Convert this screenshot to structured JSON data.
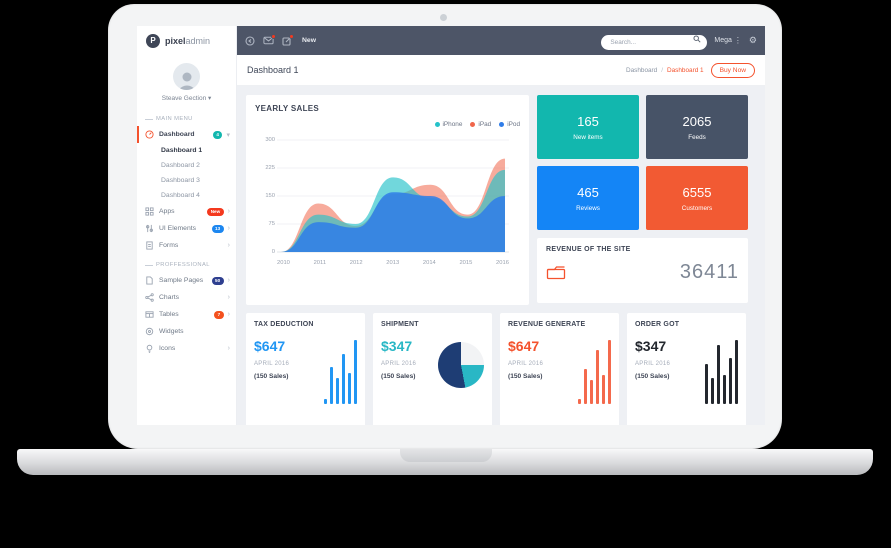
{
  "colors": {
    "accent": "#f4522d",
    "navbar": "#4d5567",
    "teal": "#12b7ae",
    "navy": "#475367",
    "blue": "#1485f6",
    "orange": "#f25a33"
  },
  "icons": {
    "gear": "⚙",
    "menu_dots": "⋮",
    "caret_down": "▾",
    "chevron_right": "›"
  },
  "brand": {
    "initial": "P",
    "name_bold": "pixel",
    "name_light": "admin"
  },
  "topbar": {
    "new_label": "New",
    "search_placeholder": "Search...",
    "mega_label": "Mega"
  },
  "user": {
    "name": "Steave Gection"
  },
  "sidebar": {
    "main_menu_title": "MAIN MENU",
    "professional_title": "PROFFESSIONAL",
    "dashboard": {
      "label": "Dashboard",
      "badge": "4"
    },
    "dashboard_children": [
      {
        "label": "Dashboard 1"
      },
      {
        "label": "Dashboard 2"
      },
      {
        "label": "Dashboard 3"
      },
      {
        "label": "Dashboard 4"
      }
    ],
    "menu_items": [
      {
        "label": "Apps",
        "badge": "New"
      },
      {
        "label": "UI Elements",
        "badge": "13"
      },
      {
        "label": "Forms",
        "badge": ""
      }
    ],
    "pro_items": [
      {
        "label": "Sample Pages",
        "badge": "50"
      },
      {
        "label": "Charts",
        "badge": ""
      },
      {
        "label": "Tables",
        "badge": "7"
      },
      {
        "label": "Widgets",
        "badge": ""
      },
      {
        "label": "Icons",
        "badge": ""
      }
    ]
  },
  "page": {
    "title": "Dashboard 1",
    "breadcrumb_root": "Dashboard",
    "breadcrumb_sep": "/",
    "breadcrumb_current": "Dashboard 1",
    "buy_now": "Buy Now"
  },
  "stats": [
    {
      "value": "165",
      "label": "New items",
      "color": "#12b7ae"
    },
    {
      "value": "2065",
      "label": "Feeds",
      "color": "#475367"
    },
    {
      "value": "465",
      "label": "Reviews",
      "color": "#1485f6"
    },
    {
      "value": "6555",
      "label": "Customers",
      "color": "#f25a33"
    }
  ],
  "revenue": {
    "title": "REVENUE OF THE SITE",
    "value": "36411"
  },
  "bottom_cards": [
    {
      "title": "TAX DEDUCTION",
      "amount": "$647",
      "period": "APRIL 2016",
      "sales": "(150 Sales)",
      "color": "#2196f3"
    },
    {
      "title": "SHIPMENT",
      "amount": "$347",
      "period": "APRIL 2016",
      "sales": "(150 Sales)",
      "color": "#29b7c5"
    },
    {
      "title": "REVENUE GENERATE",
      "amount": "$647",
      "period": "APRIL 2016",
      "sales": "(150 Sales)",
      "color": "#f4522d"
    },
    {
      "title": "ORDER GOT",
      "amount": "$347",
      "period": "APRIL 2016",
      "sales": "(150 Sales)",
      "color": "#23272e"
    }
  ],
  "chart_data": [
    {
      "type": "area",
      "title": "YEARLY SALES",
      "x": [
        2010,
        2011,
        2012,
        2013,
        2014,
        2015,
        2016
      ],
      "yticks": [
        300,
        225,
        150,
        75,
        0
      ],
      "ylim": [
        0,
        300
      ],
      "grid": true,
      "legend_position": "top-right",
      "series": [
        {
          "name": "iPhone",
          "color": "#25c2c9",
          "values": [
            0,
            100,
            75,
            200,
            145,
            95,
            220
          ]
        },
        {
          "name": "iPad",
          "color": "#f0664a",
          "values": [
            0,
            130,
            70,
            155,
            180,
            100,
            250
          ]
        },
        {
          "name": "iPod",
          "color": "#2f7de8",
          "values": [
            0,
            80,
            65,
            160,
            150,
            90,
            150
          ]
        }
      ]
    },
    {
      "type": "bar",
      "title": "TAX DEDUCTION sparkline",
      "values": [
        8,
        58,
        40,
        78,
        48,
        100
      ],
      "color": "#2196f3"
    },
    {
      "type": "pie",
      "title": "SHIPMENT pie",
      "slices": [
        {
          "value": 25,
          "color": "#f2f3f5"
        },
        {
          "value": 22,
          "color": "#29b7c5"
        },
        {
          "value": 53,
          "color": "#1e3d74"
        }
      ]
    },
    {
      "type": "bar",
      "title": "REVENUE GENERATE sparkline",
      "values": [
        8,
        55,
        38,
        85,
        45,
        100
      ],
      "color": "#f4694c"
    },
    {
      "type": "bar",
      "title": "ORDER GOT sparkline",
      "values": [
        62,
        40,
        92,
        46,
        72,
        100
      ],
      "color": "#23272e"
    }
  ]
}
